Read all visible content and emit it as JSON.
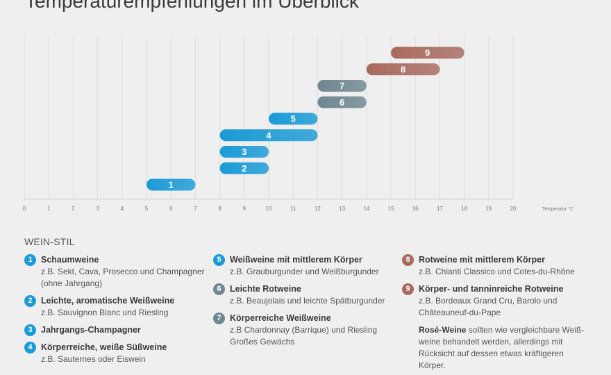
{
  "title": "Temperaturempfehlungen im Überblick",
  "chart_data": {
    "type": "range-bar",
    "xlabel": "Temperatur °C",
    "xlim": [
      0,
      20
    ],
    "x_ticks": [
      "0",
      "1",
      "2",
      "3",
      "4",
      "5",
      "6",
      "7",
      "8",
      "9",
      "10",
      "11",
      "12",
      "13",
      "14",
      "15",
      "16",
      "17",
      "18",
      "19",
      "20"
    ],
    "grid": true,
    "bars": [
      {
        "label": "1",
        "start": 5,
        "end": 7
      },
      {
        "label": "2",
        "start": 8,
        "end": 10
      },
      {
        "label": "3",
        "start": 8,
        "end": 10
      },
      {
        "label": "4",
        "start": 8,
        "end": 12
      },
      {
        "label": "5",
        "start": 10,
        "end": 12
      },
      {
        "label": "6",
        "start": 12,
        "end": 14
      },
      {
        "label": "7",
        "start": 12,
        "end": 14
      },
      {
        "label": "8",
        "start": 14,
        "end": 17
      },
      {
        "label": "9",
        "start": 15,
        "end": 18
      }
    ],
    "colors": {
      "1": "#1a9ad6",
      "2": "#1a9ad6",
      "3": "#1a9ad6",
      "4": "#1a9ad6",
      "5": "#1a9ad6",
      "6": "#6e8791",
      "7": "#6e8791",
      "8": "#a86a5f",
      "9": "#a86a5f"
    }
  },
  "legend": {
    "heading": "WEIN-STIL",
    "columns": [
      [
        {
          "num": "1",
          "color": "#1a9ad6",
          "name": "Schaumweine",
          "example": "z.B. Sekt, Cava, Prosecco und Champagner (ohne Jahrgang)"
        },
        {
          "num": "2",
          "color": "#1a9ad6",
          "name": "Leichte, aromatische Weißweine",
          "example": "z.B. Sauvignon Blanc und Riesling"
        },
        {
          "num": "3",
          "color": "#1a9ad6",
          "name": "Jahrgangs-Champagner",
          "example": ""
        },
        {
          "num": "4",
          "color": "#1a9ad6",
          "name": "Körperreiche, weiße Süßweine",
          "example": "z.B. Sauternes oder Eiswein"
        }
      ],
      [
        {
          "num": "5",
          "color": "#1a9ad6",
          "name": "Weißweine mit mittlerem Körper",
          "example": "z.B. Grauburgunder und Weißburgunder"
        },
        {
          "num": "6",
          "color": "#6e8791",
          "name": "Leichte Rotweine",
          "example": "z.B. Beaujolais und leichte Spätburgunder"
        },
        {
          "num": "7",
          "color": "#6e8791",
          "name": "Körperreiche Weißweine",
          "example": "z.B Chardonnay (Barrique) und Riesling Großes Gewächs"
        }
      ],
      [
        {
          "num": "8",
          "color": "#a86a5f",
          "name": "Rotweine mit mittlerem Körper",
          "example": "z.B. Chianti Classico und Cotes-du-Rhône"
        },
        {
          "num": "9",
          "color": "#a86a5f",
          "name": "Körper- und tanninreiche Rotweine",
          "example": "z.B. Bordeaux Grand Cru, Barolo und Châteauneuf-du-Pape"
        }
      ]
    ],
    "note_bold": "Rosé-Weine",
    "note_text": " sollten wie vergleichbare Weiß-weine behandelt werden, allerdings mit Rücksicht auf dessen etwas kräftigeren Körper."
  }
}
